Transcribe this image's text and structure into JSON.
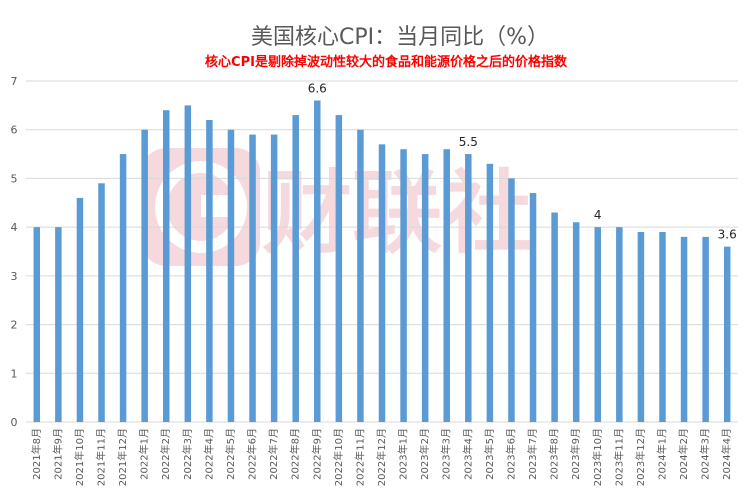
{
  "chart_data": {
    "type": "bar",
    "title": "美国核心CPI：当月同比（%）",
    "subtitle": "核心CPI是剔除掉波动性较大的食品和能源价格之后的价格指数",
    "ylim": [
      0,
      7
    ],
    "yticks": [
      0,
      1,
      2,
      3,
      4,
      5,
      6,
      7
    ],
    "grid": true,
    "categories": [
      "2021年8月",
      "2021年9月",
      "2021年10月",
      "2021年11月",
      "2021年12月",
      "2022年1月",
      "2022年2月",
      "2022年3月",
      "2022年4月",
      "2022年5月",
      "2022年6月",
      "2022年7月",
      "2022年8月",
      "2022年9月",
      "2022年10月",
      "2022年11月",
      "2022年12月",
      "2023年1月",
      "2023年2月",
      "2023年3月",
      "2023年4月",
      "2023年5月",
      "2023年6月",
      "2023年7月",
      "2023年8月",
      "2023年9月",
      "2023年10月",
      "2023年11月",
      "2023年12月",
      "2024年1月",
      "2024年2月",
      "2024年3月",
      "2024年4月"
    ],
    "values": [
      4.0,
      4.0,
      4.6,
      4.9,
      5.5,
      6.0,
      6.4,
      6.5,
      6.2,
      6.0,
      5.9,
      5.9,
      6.3,
      6.6,
      6.3,
      6.0,
      5.7,
      5.6,
      5.5,
      5.6,
      5.5,
      5.3,
      5.0,
      4.7,
      4.3,
      4.1,
      4.0,
      4.0,
      3.9,
      3.9,
      3.8,
      3.8,
      3.6
    ],
    "annotations": [
      {
        "index": 13,
        "text": "6.6"
      },
      {
        "index": 20,
        "text": "5.5"
      },
      {
        "index": 26,
        "text": "4"
      },
      {
        "index": 32,
        "text": "3.6"
      }
    ],
    "bar_color": "#5b9bd5"
  },
  "watermark": {
    "text": "财联社",
    "icon": "cls-logo-icon",
    "color": "#f6d9dd"
  }
}
